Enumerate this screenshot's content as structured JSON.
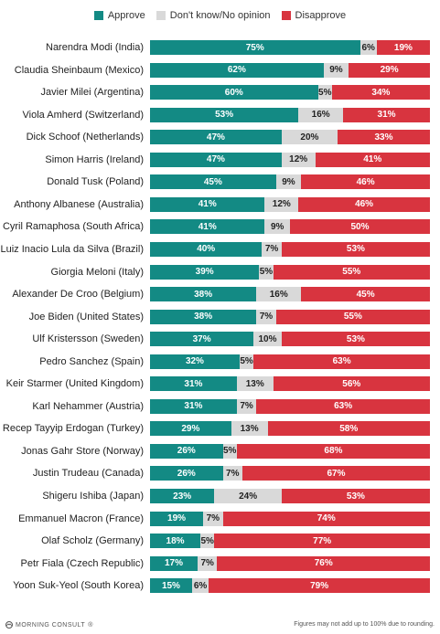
{
  "colors": {
    "approve": "#138a84",
    "neutral": "#d9d9d9",
    "disapprove": "#d8343f"
  },
  "legend": {
    "approve": "Approve",
    "neutral": "Don't know/No opinion",
    "disapprove": "Disapprove"
  },
  "footer": {
    "brand": "MORNING CONSULT",
    "brand_mark": "®",
    "note": "Figures may not add up to 100% due to rounding."
  },
  "chart_data": {
    "type": "bar",
    "orientation": "horizontal",
    "stacked": true,
    "title": "",
    "xlabel": "",
    "ylabel": "",
    "xlim": [
      0,
      100
    ],
    "legend_position": "top-center",
    "categories": [
      "Narendra Modi (India)",
      "Claudia Sheinbaum (Mexico)",
      "Javier Milei (Argentina)",
      "Viola Amherd (Switzerland)",
      "Dick Schoof (Netherlands)",
      "Simon Harris (Ireland)",
      "Donald Tusk (Poland)",
      "Anthony Albanese (Australia)",
      "Cyril Ramaphosa (South Africa)",
      "Luiz Inacio Lula da Silva (Brazil)",
      "Giorgia Meloni (Italy)",
      "Alexander De Croo (Belgium)",
      "Joe Biden (United States)",
      "Ulf Kristersson (Sweden)",
      "Pedro Sanchez (Spain)",
      "Keir Starmer (United Kingdom)",
      "Karl Nehammer (Austria)",
      "Recep Tayyip Erdogan (Turkey)",
      "Jonas Gahr Store (Norway)",
      "Justin Trudeau (Canada)",
      "Shigeru Ishiba (Japan)",
      "Emmanuel Macron (France)",
      "Olaf Scholz (Germany)",
      "Petr Fiala (Czech Republic)",
      "Yoon Suk-Yeol (South Korea)"
    ],
    "series": [
      {
        "name": "Approve",
        "key": "approve",
        "values": [
          75,
          62,
          60,
          53,
          47,
          47,
          45,
          41,
          41,
          40,
          39,
          38,
          38,
          37,
          32,
          31,
          31,
          29,
          26,
          26,
          23,
          19,
          18,
          17,
          15
        ]
      },
      {
        "name": "Don't know/No opinion",
        "key": "neutral",
        "values": [
          6,
          9,
          5,
          16,
          20,
          12,
          9,
          12,
          9,
          7,
          5,
          16,
          7,
          10,
          5,
          13,
          7,
          13,
          5,
          7,
          24,
          7,
          5,
          7,
          6
        ]
      },
      {
        "name": "Disapprove",
        "key": "disapprove",
        "values": [
          19,
          29,
          34,
          31,
          33,
          41,
          46,
          46,
          50,
          53,
          55,
          45,
          55,
          53,
          63,
          56,
          63,
          58,
          68,
          67,
          53,
          74,
          77,
          76,
          79
        ]
      }
    ],
    "value_suffix": "%"
  }
}
